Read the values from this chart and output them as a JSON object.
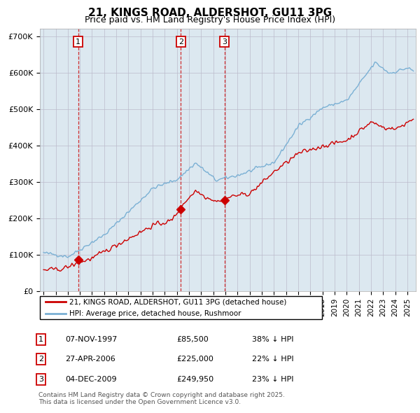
{
  "title": "21, KINGS ROAD, ALDERSHOT, GU11 3PG",
  "subtitle": "Price paid vs. HM Land Registry's House Price Index (HPI)",
  "ylim": [
    0,
    720000
  ],
  "yticks": [
    0,
    100000,
    200000,
    300000,
    400000,
    500000,
    600000,
    700000
  ],
  "ytick_labels": [
    "£0",
    "£100K",
    "£200K",
    "£300K",
    "£400K",
    "£500K",
    "£600K",
    "£700K"
  ],
  "xlim_start": 1994.7,
  "xlim_end": 2025.7,
  "sale_dates_num": [
    1997.85,
    2006.32,
    2009.92
  ],
  "sale_prices": [
    85500,
    225000,
    249950
  ],
  "sale_labels": [
    "1",
    "2",
    "3"
  ],
  "legend_entries": [
    "21, KINGS ROAD, ALDERSHOT, GU11 3PG (detached house)",
    "HPI: Average price, detached house, Rushmoor"
  ],
  "table_data": [
    [
      "1",
      "07-NOV-1997",
      "£85,500",
      "38% ↓ HPI"
    ],
    [
      "2",
      "27-APR-2006",
      "£225,000",
      "22% ↓ HPI"
    ],
    [
      "3",
      "04-DEC-2009",
      "£249,950",
      "23% ↓ HPI"
    ]
  ],
  "footnote": "Contains HM Land Registry data © Crown copyright and database right 2025.\nThis data is licensed under the Open Government Licence v3.0.",
  "line_color_red": "#cc0000",
  "line_color_blue": "#7ab0d4",
  "fill_color_blue": "#ddeeff",
  "grid_color": "#bbbbcc",
  "background_color": "#dce8f0",
  "plot_bg_color": "#dce8f0"
}
